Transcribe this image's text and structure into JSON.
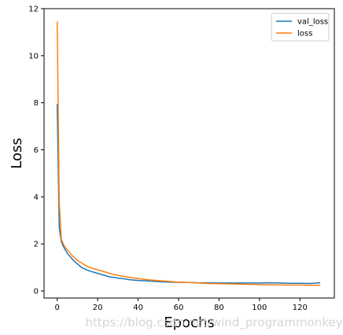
{
  "chart_data": {
    "type": "line",
    "xlabel": "Epochs",
    "ylabel": "Loss",
    "xlim": [
      -6.5,
      137
    ],
    "ylim": [
      -0.3,
      12
    ],
    "xticks": [
      0,
      20,
      40,
      60,
      80,
      100,
      120
    ],
    "yticks": [
      0,
      2,
      4,
      6,
      8,
      10,
      12
    ],
    "legend_position": "top-right",
    "grid": false,
    "series": [
      {
        "name": "val_loss",
        "color": "#1f77b4",
        "x": [
          0,
          1,
          2,
          3,
          4,
          5,
          6,
          7,
          8,
          10,
          12,
          14,
          16,
          18,
          20,
          22,
          24,
          26,
          28,
          30,
          33,
          36,
          40,
          45,
          50,
          55,
          60,
          65,
          70,
          75,
          80,
          85,
          90,
          95,
          100,
          105,
          110,
          115,
          120,
          125,
          130
        ],
        "y": [
          7.95,
          2.7,
          2.1,
          1.9,
          1.75,
          1.6,
          1.5,
          1.4,
          1.3,
          1.15,
          1.0,
          0.92,
          0.85,
          0.8,
          0.75,
          0.7,
          0.65,
          0.6,
          0.58,
          0.55,
          0.52,
          0.48,
          0.45,
          0.43,
          0.4,
          0.38,
          0.37,
          0.36,
          0.35,
          0.35,
          0.34,
          0.34,
          0.34,
          0.34,
          0.34,
          0.35,
          0.34,
          0.33,
          0.33,
          0.32,
          0.35
        ]
      },
      {
        "name": "loss",
        "color": "#ff7f0e",
        "x": [
          0,
          1,
          2,
          3,
          4,
          5,
          6,
          7,
          8,
          10,
          12,
          14,
          16,
          18,
          20,
          22,
          24,
          26,
          28,
          30,
          33,
          36,
          40,
          45,
          50,
          55,
          60,
          65,
          70,
          75,
          80,
          85,
          90,
          95,
          100,
          105,
          110,
          115,
          120,
          125,
          130
        ],
        "y": [
          11.45,
          3.8,
          2.2,
          2.0,
          1.85,
          1.75,
          1.65,
          1.55,
          1.45,
          1.3,
          1.2,
          1.08,
          1.0,
          0.95,
          0.9,
          0.85,
          0.8,
          0.75,
          0.7,
          0.67,
          0.62,
          0.58,
          0.53,
          0.48,
          0.44,
          0.41,
          0.38,
          0.36,
          0.34,
          0.32,
          0.31,
          0.3,
          0.29,
          0.28,
          0.27,
          0.26,
          0.26,
          0.25,
          0.25,
          0.24,
          0.24
        ]
      }
    ]
  },
  "watermark": "https://blog.csdn.net/wind_programmonkey"
}
